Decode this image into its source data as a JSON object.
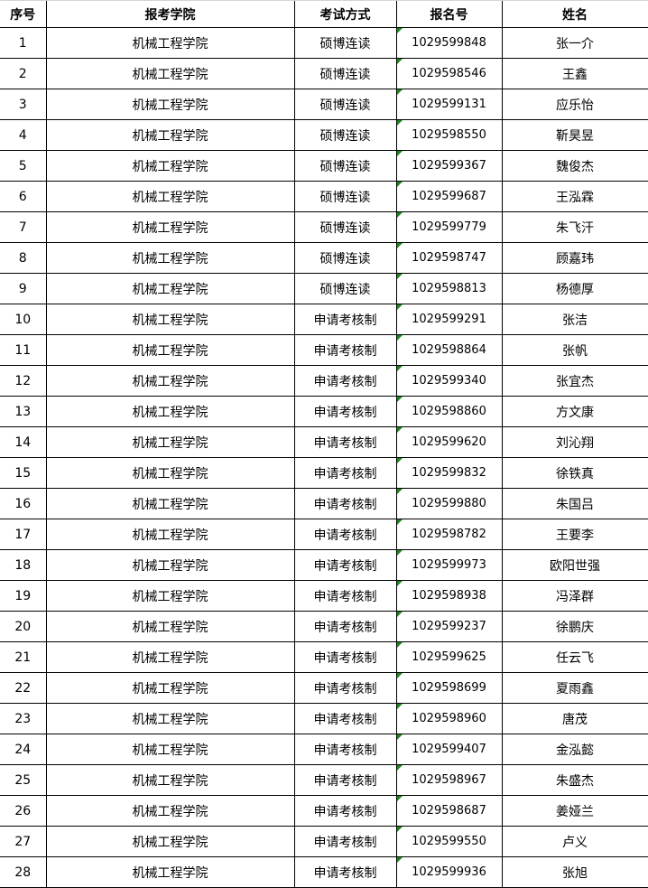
{
  "headers": [
    "序号",
    "报考学院",
    "考试方式",
    "报名号",
    "姓名"
  ],
  "indicator_color": "#1a8a1a",
  "rows": [
    {
      "no": "1",
      "college": "机械工程学院",
      "method": "硕博连读",
      "id": "1029599848",
      "name": "张一介"
    },
    {
      "no": "2",
      "college": "机械工程学院",
      "method": "硕博连读",
      "id": "1029598546",
      "name": "王鑫"
    },
    {
      "no": "3",
      "college": "机械工程学院",
      "method": "硕博连读",
      "id": "1029599131",
      "name": "应乐怡"
    },
    {
      "no": "4",
      "college": "机械工程学院",
      "method": "硕博连读",
      "id": "1029598550",
      "name": "靳昊昱"
    },
    {
      "no": "5",
      "college": "机械工程学院",
      "method": "硕博连读",
      "id": "1029599367",
      "name": "魏俊杰"
    },
    {
      "no": "6",
      "college": "机械工程学院",
      "method": "硕博连读",
      "id": "1029599687",
      "name": "王泓霖"
    },
    {
      "no": "7",
      "college": "机械工程学院",
      "method": "硕博连读",
      "id": "1029599779",
      "name": "朱飞汗"
    },
    {
      "no": "8",
      "college": "机械工程学院",
      "method": "硕博连读",
      "id": "1029598747",
      "name": "顾嘉玮"
    },
    {
      "no": "9",
      "college": "机械工程学院",
      "method": "硕博连读",
      "id": "1029598813",
      "name": "杨德厚"
    },
    {
      "no": "10",
      "college": "机械工程学院",
      "method": "申请考核制",
      "id": "1029599291",
      "name": "张洁"
    },
    {
      "no": "11",
      "college": "机械工程学院",
      "method": "申请考核制",
      "id": "1029598864",
      "name": "张帆"
    },
    {
      "no": "12",
      "college": "机械工程学院",
      "method": "申请考核制",
      "id": "1029599340",
      "name": "张宜杰"
    },
    {
      "no": "13",
      "college": "机械工程学院",
      "method": "申请考核制",
      "id": "1029598860",
      "name": "方文康"
    },
    {
      "no": "14",
      "college": "机械工程学院",
      "method": "申请考核制",
      "id": "1029599620",
      "name": "刘沁翔"
    },
    {
      "no": "15",
      "college": "机械工程学院",
      "method": "申请考核制",
      "id": "1029599832",
      "name": "徐铁真"
    },
    {
      "no": "16",
      "college": "机械工程学院",
      "method": "申请考核制",
      "id": "1029599880",
      "name": "朱国吕"
    },
    {
      "no": "17",
      "college": "机械工程学院",
      "method": "申请考核制",
      "id": "1029598782",
      "name": "王要李"
    },
    {
      "no": "18",
      "college": "机械工程学院",
      "method": "申请考核制",
      "id": "1029599973",
      "name": "欧阳世强"
    },
    {
      "no": "19",
      "college": "机械工程学院",
      "method": "申请考核制",
      "id": "1029598938",
      "name": "冯泽群"
    },
    {
      "no": "20",
      "college": "机械工程学院",
      "method": "申请考核制",
      "id": "1029599237",
      "name": "徐鹏庆"
    },
    {
      "no": "21",
      "college": "机械工程学院",
      "method": "申请考核制",
      "id": "1029599625",
      "name": "任云飞"
    },
    {
      "no": "22",
      "college": "机械工程学院",
      "method": "申请考核制",
      "id": "1029598699",
      "name": "夏雨鑫"
    },
    {
      "no": "23",
      "college": "机械工程学院",
      "method": "申请考核制",
      "id": "1029598960",
      "name": "唐茂"
    },
    {
      "no": "24",
      "college": "机械工程学院",
      "method": "申请考核制",
      "id": "1029599407",
      "name": "金泓懿"
    },
    {
      "no": "25",
      "college": "机械工程学院",
      "method": "申请考核制",
      "id": "1029598967",
      "name": "朱盛杰"
    },
    {
      "no": "26",
      "college": "机械工程学院",
      "method": "申请考核制",
      "id": "1029598687",
      "name": "姜娅兰"
    },
    {
      "no": "27",
      "college": "机械工程学院",
      "method": "申请考核制",
      "id": "1029599550",
      "name": "卢义"
    },
    {
      "no": "28",
      "college": "机械工程学院",
      "method": "申请考核制",
      "id": "1029599936",
      "name": "张旭"
    }
  ]
}
